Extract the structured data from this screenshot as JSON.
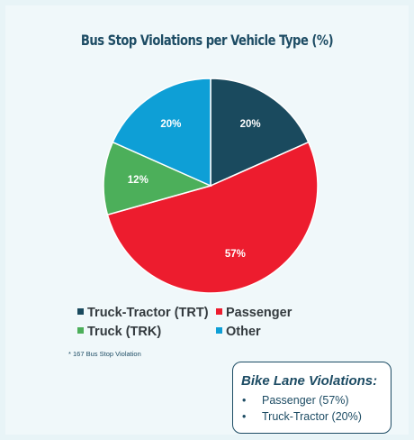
{
  "chart_data": {
    "type": "pie",
    "title": "Bus Stop Violations per Vehicle Type (%)",
    "slices": [
      {
        "label": "Truck-Tractor (TRT)",
        "value": 20,
        "data_label": "20%",
        "color": "#1a4a5e"
      },
      {
        "label": "Passenger",
        "value": 57,
        "data_label": "57%",
        "color": "#ed1c2e"
      },
      {
        "label": "Truck (TRK)",
        "value": 12,
        "data_label": "12%",
        "color": "#4caf5a"
      },
      {
        "label": "Other",
        "value": 20,
        "data_label": "20%",
        "color": "#0e9fd6"
      }
    ],
    "legend_placement": "bottom"
  },
  "footnote": "* 167 Bus Stop Violation",
  "bike_box": {
    "title": "Bike Lane Violations:",
    "bullet": "•",
    "items": [
      "Passenger (57%)",
      "Truck-Tractor (20%)"
    ]
  },
  "colors": {
    "background": "#f0f8fa",
    "title_text": "#1d4c64",
    "box_border": "#1d4c64"
  }
}
